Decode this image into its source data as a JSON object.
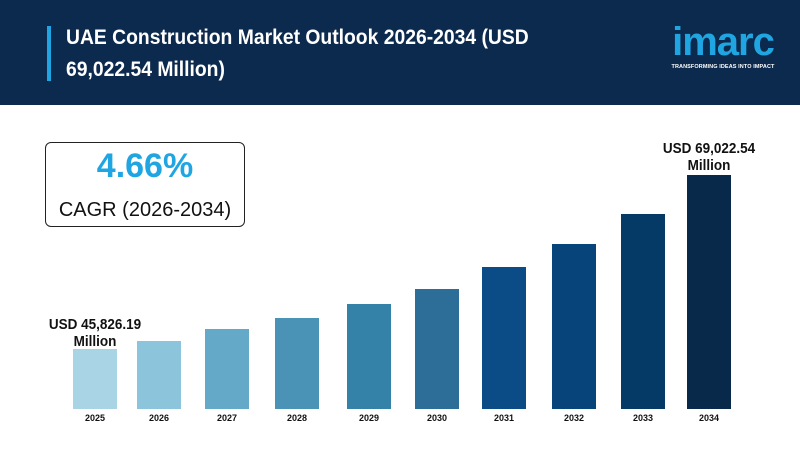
{
  "header": {
    "title": "UAE Construction Market Outlook 2026-2034 (USD 69,022.54 Million)",
    "logo_word": "imarc",
    "logo_tagline": "TRANSFORMING IDEAS INTO IMPACT"
  },
  "cagr": {
    "value": "4.66%",
    "label": "CAGR (2026-2034)"
  },
  "chart_data": {
    "type": "bar",
    "categories": [
      "2025",
      "2026",
      "2027",
      "2028",
      "2029",
      "2030",
      "2031",
      "2032",
      "2033",
      "2034"
    ],
    "values": [
      45826.19,
      null,
      null,
      null,
      null,
      null,
      null,
      null,
      null,
      69022.54
    ],
    "unit": "USD Million",
    "data_labels": {
      "first": "USD 45,826.19 Million",
      "last": "USD 69,022.54 Million"
    },
    "colors": [
      "#a8d4e6",
      "#8cc4dc",
      "#65a9c8",
      "#4b93b6",
      "#3482a8",
      "#2c6e97",
      "#0b4c86",
      "#064479",
      "#053a66",
      "#08294a"
    ],
    "grid": false
  },
  "colors": {
    "header_bg": "#0c2a4d",
    "accent": "#1fa6e2"
  }
}
